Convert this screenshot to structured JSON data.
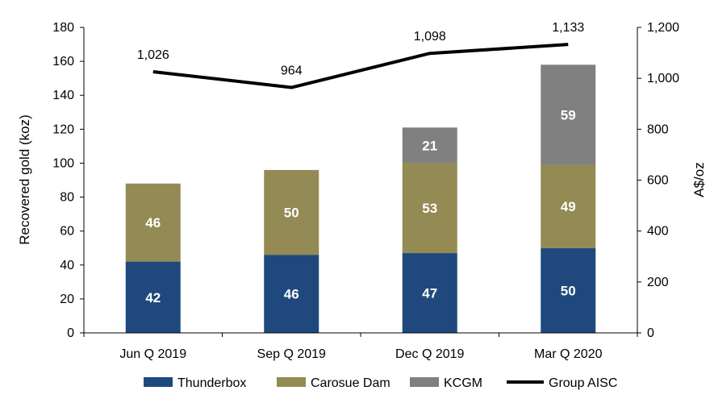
{
  "chart_data": {
    "type": "bar",
    "stacked": true,
    "categories": [
      "Jun Q 2019",
      "Sep Q 2019",
      "Dec Q 2019",
      "Mar Q 2020"
    ],
    "series": [
      {
        "name": "Thunderbox",
        "values": [
          42,
          46,
          47,
          50
        ],
        "color": "#1F497D",
        "labels": [
          "42",
          "46",
          "47",
          "50"
        ]
      },
      {
        "name": "Carosue Dam",
        "values": [
          46,
          50,
          53,
          49
        ],
        "color": "#948A54",
        "labels": [
          "46",
          "50",
          "53",
          "49"
        ]
      },
      {
        "name": "KCGM",
        "values": [
          0,
          0,
          21,
          59
        ],
        "color": "#808080",
        "labels": [
          "",
          "",
          "21",
          "59"
        ]
      }
    ],
    "line": {
      "name": "Group AISC",
      "axis": "right",
      "values": [
        1026,
        964,
        1098,
        1133
      ],
      "labels": [
        "1,026",
        "964",
        "1,098",
        "1,133"
      ],
      "color": "#000000"
    },
    "ylabel": "Recovered gold (koz)",
    "y2label": "A$/oz",
    "ylim": [
      0,
      180
    ],
    "y2lim": [
      0,
      1200
    ],
    "yticks": [
      "0",
      "20",
      "40",
      "60",
      "80",
      "100",
      "120",
      "140",
      "160",
      "180"
    ],
    "y2ticks": [
      "0",
      "200",
      "400",
      "600",
      "800",
      "1,000",
      "1,200"
    ],
    "legend_position": "bottom",
    "grid": false
  }
}
